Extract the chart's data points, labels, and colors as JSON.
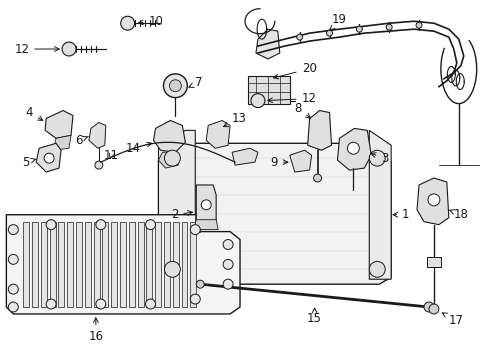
{
  "bg": "#ffffff",
  "lc": "#1a1a1a",
  "fig_w": 4.9,
  "fig_h": 3.6,
  "dpi": 100,
  "fs": 8.5
}
